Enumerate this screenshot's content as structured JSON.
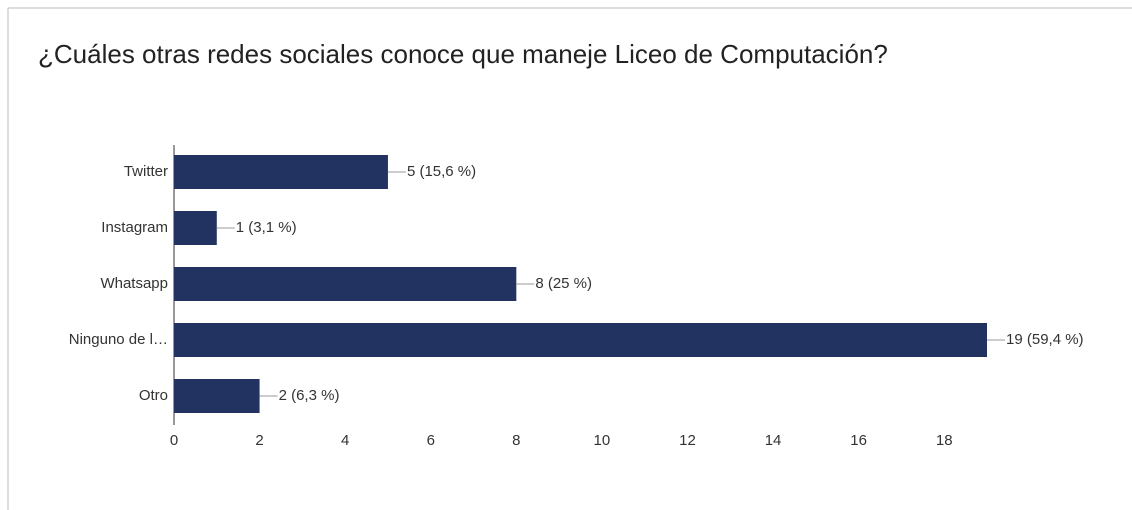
{
  "chart_data": {
    "type": "bar",
    "orientation": "horizontal",
    "title": "¿Cuáles otras redes sociales conoce que maneje Liceo de Computación?",
    "categories": [
      "Twitter",
      "Instagram",
      "Whatsapp",
      "Ninguno de l…",
      "Otro"
    ],
    "values": [
      5,
      1,
      8,
      19,
      2
    ],
    "value_labels": [
      "5 (15,6 %)",
      "1 (3,1 %)",
      "8 (25 %)",
      "19 (59,4 %)",
      "2 (6,3 %)"
    ],
    "color": "#223361",
    "xlim": [
      0,
      19
    ],
    "xticks": [
      0,
      2,
      4,
      6,
      8,
      10,
      12,
      14,
      16,
      18
    ],
    "grid": false
  }
}
